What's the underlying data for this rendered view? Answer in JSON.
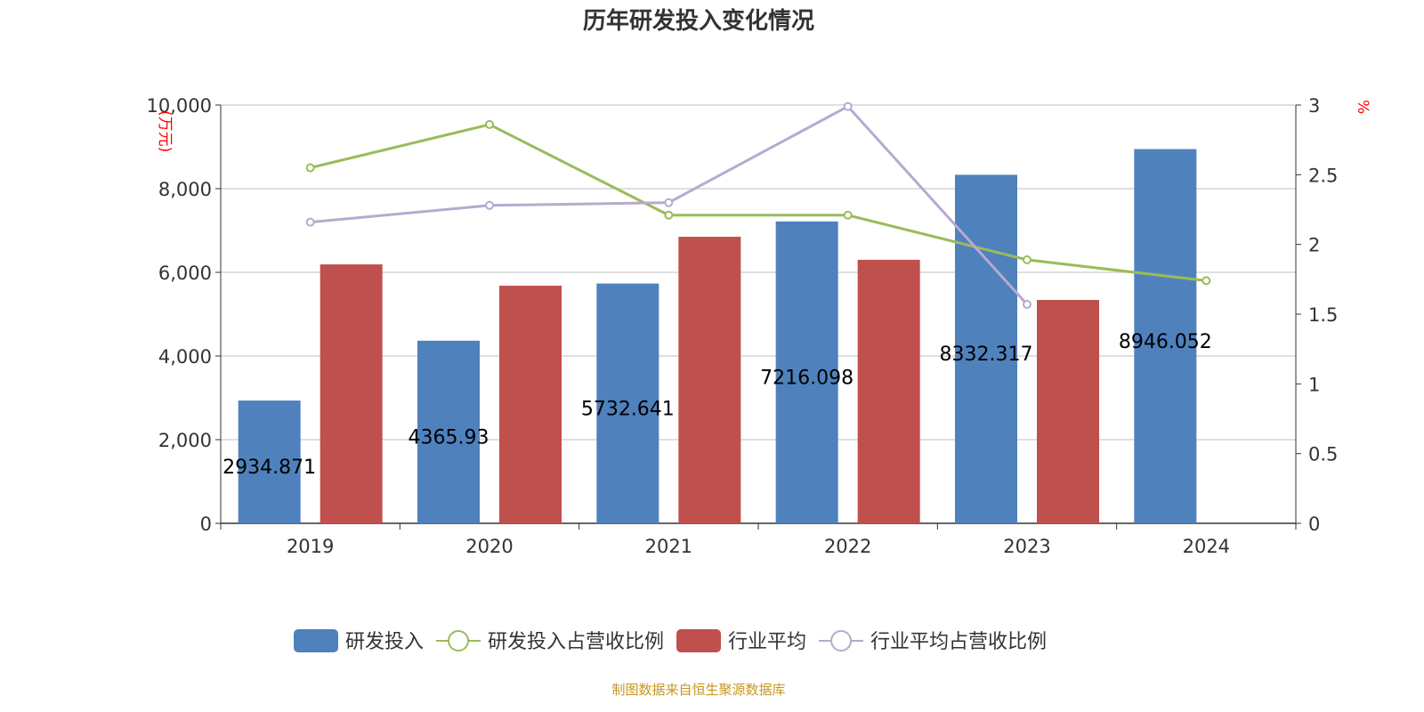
{
  "chart_data": {
    "type": "bar",
    "title": "历年研发投入变化情况",
    "categories": [
      "2019",
      "2020",
      "2021",
      "2022",
      "2023",
      "2024"
    ],
    "y_left": {
      "label": "(万元)",
      "range": [
        0,
        10000
      ],
      "ticks": [
        0,
        2000,
        4000,
        6000,
        8000,
        10000
      ],
      "tick_labels": [
        "0",
        "2,000",
        "4,000",
        "6,000",
        "8,000",
        "10,000"
      ]
    },
    "y_right": {
      "label": "%",
      "range": [
        0,
        3
      ],
      "ticks": [
        0,
        0.5,
        1,
        1.5,
        2,
        2.5,
        3
      ],
      "tick_labels": [
        "0",
        "0.5",
        "1",
        "1.5",
        "2",
        "2.5",
        "3"
      ]
    },
    "grid": true,
    "legend_position": "bottom",
    "series": [
      {
        "name": "研发投入",
        "type": "bar",
        "axis": "left",
        "color": "#4f81bd",
        "values": [
          2934.871,
          4365.93,
          5732.641,
          7216.098,
          8332.317,
          8946.052
        ],
        "labels": [
          "2934.871",
          "4365.93",
          "5732.641",
          "7216.098",
          "8332.317",
          "8946.052"
        ]
      },
      {
        "name": "研发投入占营收比例",
        "type": "line",
        "axis": "right",
        "color": "#9bbb59",
        "values": [
          2.55,
          2.86,
          2.21,
          2.21,
          1.89,
          1.74
        ]
      },
      {
        "name": "行业平均",
        "type": "bar",
        "axis": "left",
        "color": "#c0504d",
        "values": [
          6190,
          5680,
          6850,
          6300,
          5340,
          null
        ]
      },
      {
        "name": "行业平均占营收比例",
        "type": "line",
        "axis": "right",
        "color": "#b7a9cf",
        "values": [
          2.16,
          2.28,
          2.3,
          2.99,
          1.57,
          null
        ]
      }
    ]
  },
  "source": "制图数据来自恒生聚源数据库"
}
